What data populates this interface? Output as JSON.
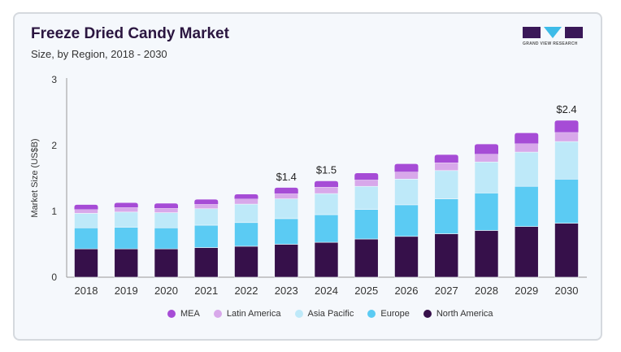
{
  "title": "Freeze Dried Candy Market",
  "subtitle": "Size, by Region, 2018 - 2030",
  "logo_text": "GRAND VIEW RESEARCH",
  "chart_data": {
    "type": "bar",
    "stacked": true,
    "ylabel": "Market Size (US$B)",
    "ylim": [
      0,
      3
    ],
    "yticks": [
      "0",
      "1",
      "2",
      "3"
    ],
    "categories": [
      "2018",
      "2019",
      "2020",
      "2021",
      "2022",
      "2023",
      "2024",
      "2025",
      "2026",
      "2027",
      "2028",
      "2029",
      "2030"
    ],
    "series": [
      {
        "name": "North America",
        "color": "#36104a",
        "values": [
          0.43,
          0.43,
          0.43,
          0.45,
          0.47,
          0.5,
          0.53,
          0.58,
          0.62,
          0.66,
          0.71,
          0.77,
          0.82
        ]
      },
      {
        "name": "Europe",
        "color": "#5bcbf3",
        "values": [
          0.32,
          0.33,
          0.32,
          0.34,
          0.36,
          0.39,
          0.42,
          0.45,
          0.48,
          0.53,
          0.57,
          0.61,
          0.67
        ]
      },
      {
        "name": "Asia Pacific",
        "color": "#bee9f9",
        "values": [
          0.22,
          0.23,
          0.23,
          0.25,
          0.28,
          0.3,
          0.32,
          0.35,
          0.39,
          0.43,
          0.47,
          0.52,
          0.57
        ]
      },
      {
        "name": "Latin America",
        "color": "#d8a8ea",
        "values": [
          0.06,
          0.07,
          0.07,
          0.07,
          0.08,
          0.08,
          0.1,
          0.1,
          0.11,
          0.12,
          0.12,
          0.13,
          0.14
        ]
      },
      {
        "name": "MEA",
        "color": "#a64cd6",
        "values": [
          0.07,
          0.07,
          0.07,
          0.07,
          0.07,
          0.09,
          0.09,
          0.1,
          0.12,
          0.12,
          0.15,
          0.16,
          0.18
        ]
      }
    ],
    "data_labels": {
      "2023": "$1.4",
      "2024": "$1.5",
      "2030": "$2.4"
    },
    "legend_order": [
      "MEA",
      "Latin America",
      "Asia Pacific",
      "Europe",
      "North America"
    ],
    "legend_position": "bottom",
    "grid": false
  }
}
